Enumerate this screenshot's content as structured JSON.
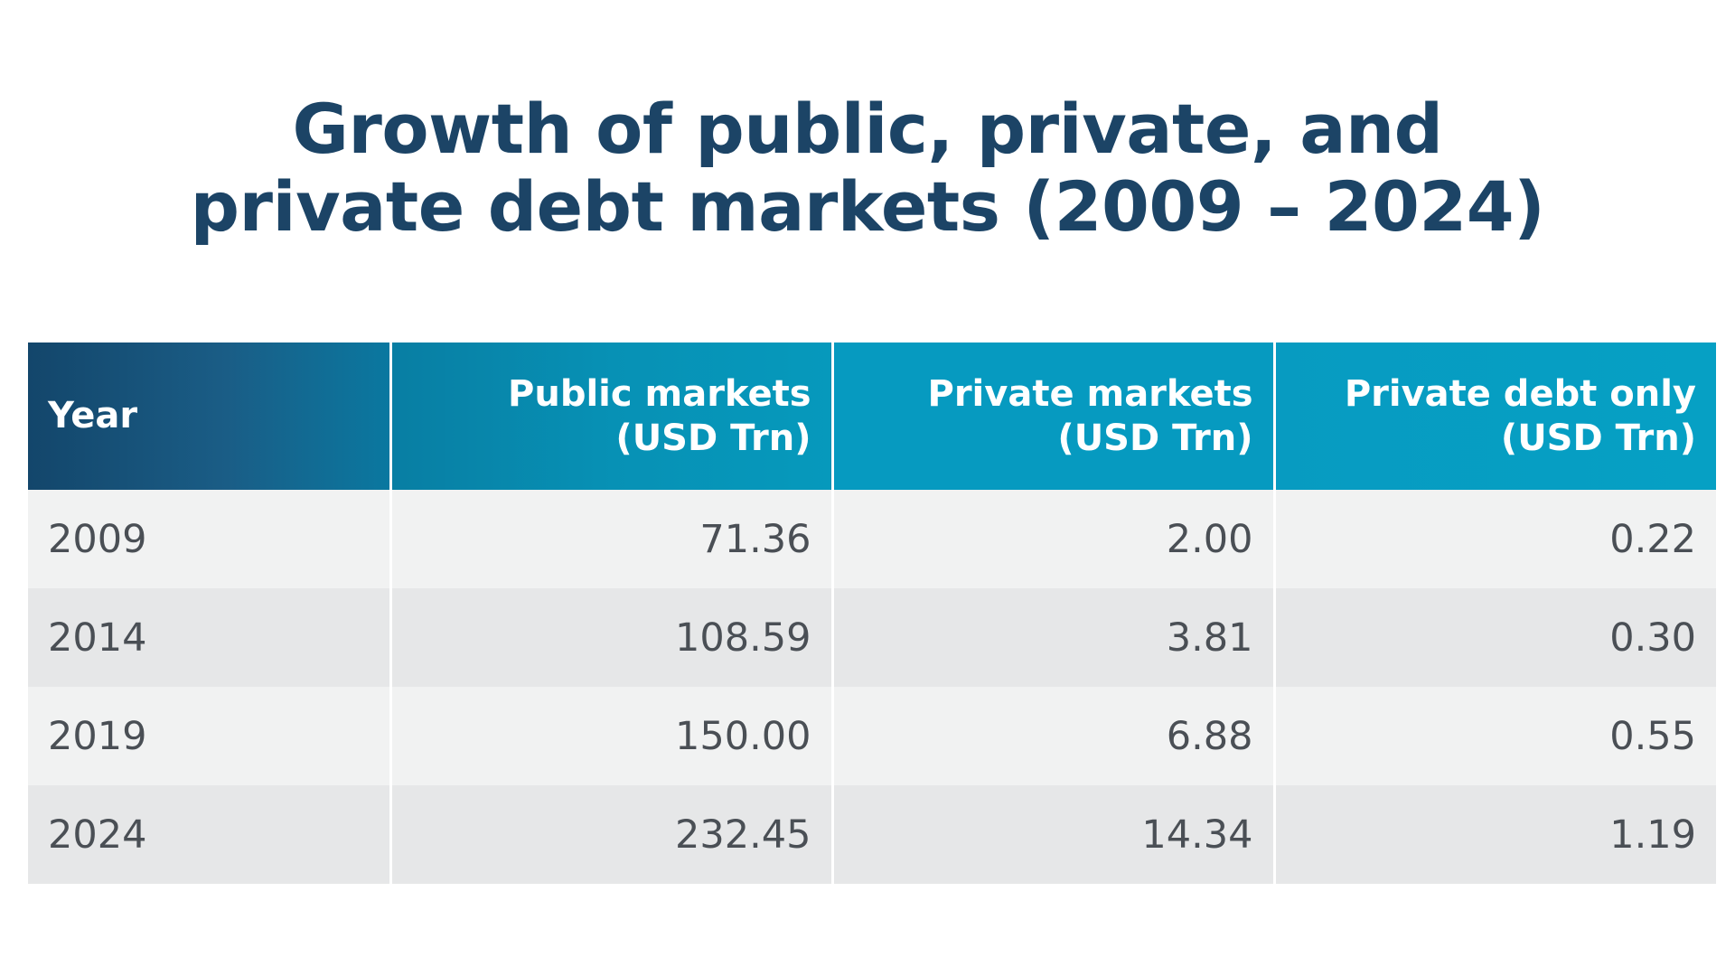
{
  "title": {
    "line1": "Growth of public, private, and",
    "line2": "private debt markets (2009 – 2024)"
  },
  "colors": {
    "title": "#1c4466",
    "header_dark": "#13466b",
    "header_teal": "#069ac0",
    "row_light": "#f1f2f2",
    "row_dark": "#e6e7e8",
    "body_text": "#4a4f55"
  },
  "chart_data": {
    "type": "table",
    "title": "Growth of public, private, and private debt markets (2009 – 2024)",
    "columns": [
      {
        "line1": "Year",
        "line2": ""
      },
      {
        "line1": "Public markets",
        "line2": "(USD Trn)"
      },
      {
        "line1": "Private markets",
        "line2": "(USD Trn)"
      },
      {
        "line1": "Private debt only",
        "line2": "(USD Trn)"
      }
    ],
    "rows": [
      [
        "2009",
        "71.36",
        "2.00",
        "0.22"
      ],
      [
        "2014",
        "108.59",
        "3.81",
        "0.30"
      ],
      [
        "2019",
        "150.00",
        "6.88",
        "0.55"
      ],
      [
        "2024",
        "232.45",
        "14.34",
        "1.19"
      ]
    ]
  }
}
